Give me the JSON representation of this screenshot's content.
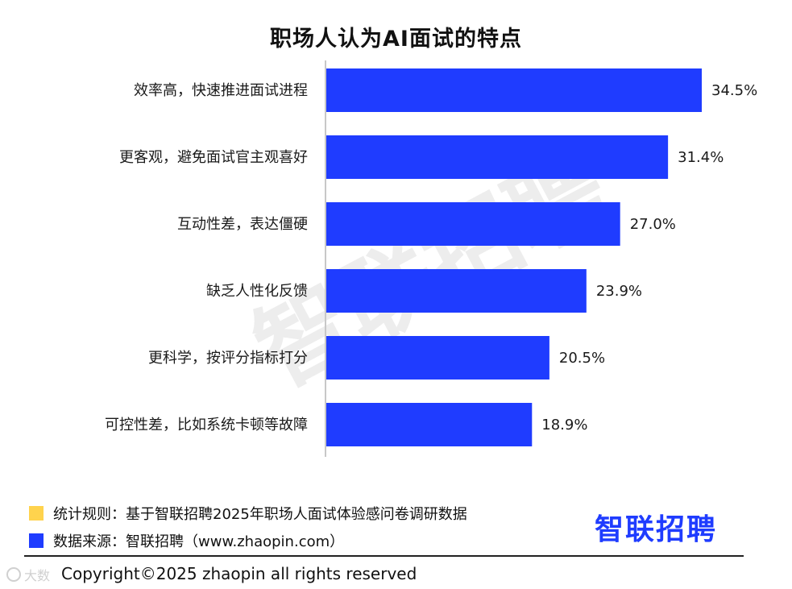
{
  "colors": {
    "bar": "#1f3cff",
    "rule_swatch": "#ffd34d",
    "source_swatch": "#1f3cff",
    "logo": "#1f3cff",
    "watermark": "#ededed"
  },
  "chart_data": {
    "type": "bar",
    "orientation": "horizontal",
    "title": "职场人认为AI面试的特点",
    "categories": [
      "效率高，快速推进面试进程",
      "更客观，避免面试官主观喜好",
      "互动性差，表达僵硬",
      "缺乏人性化反馈",
      "更科学，按评分指标打分",
      "可控性差，比如系统卡顿等故障"
    ],
    "values": [
      34.5,
      31.4,
      27.0,
      23.9,
      20.5,
      18.9
    ],
    "value_labels": [
      "34.5%",
      "31.4%",
      "27.0%",
      "23.9%",
      "20.5%",
      "18.9%"
    ],
    "xlim": [
      0,
      34.5
    ],
    "grid": false,
    "legend": "none"
  },
  "watermark": {
    "text": "智联招聘"
  },
  "notes": {
    "rule": "统计规则：基于智联招聘2025年职场人面试体验感问卷调研数据",
    "source": "数据来源：智联招聘（www.zhaopin.com）"
  },
  "logo": {
    "text": "智联招聘"
  },
  "footer": {
    "copyright": "Copyright©2025 zhaopin all rights reserved"
  },
  "corner_mark": {
    "text": "大数"
  }
}
